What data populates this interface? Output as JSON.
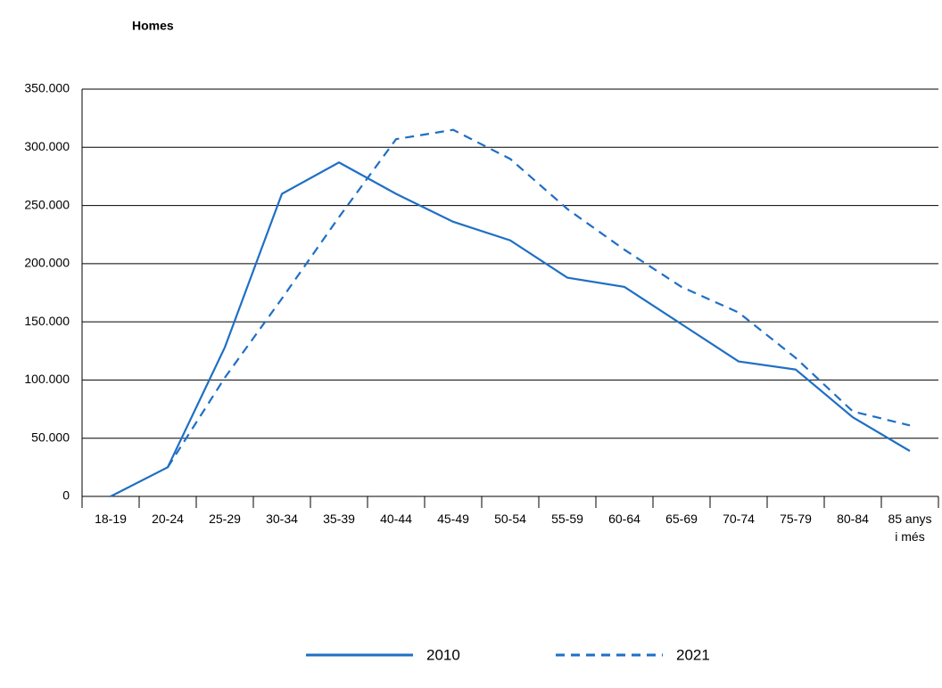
{
  "chart_data": {
    "type": "line",
    "title": "Homes",
    "categories": [
      "18-19",
      "20-24",
      "25-29",
      "30-34",
      "35-39",
      "40-44",
      "45-49",
      "50-54",
      "55-59",
      "60-64",
      "65-69",
      "70-74",
      "75-79",
      "80-84",
      "85 anys i més"
    ],
    "series": [
      {
        "name": "2010",
        "color": "#1f6fc4",
        "dash": false,
        "values": [
          0,
          25000,
          128000,
          260000,
          287000,
          260000,
          236000,
          220000,
          188000,
          180000,
          148000,
          116000,
          109000,
          68000,
          39000
        ]
      },
      {
        "name": "2021",
        "color": "#1f6fc4",
        "dash": true,
        "values": [
          null,
          25000,
          102000,
          170000,
          240000,
          307000,
          315000,
          290000,
          247000,
          212000,
          180000,
          158000,
          119000,
          73000,
          61000
        ]
      }
    ],
    "ylim": [
      0,
      350000
    ],
    "yticks": [
      0,
      {
        "value": 50000,
        "label": "50.000"
      },
      {
        "value": 100000,
        "label": "100.000"
      },
      {
        "value": 150000,
        "label": "150.000"
      },
      {
        "value": 200000,
        "label": "200.000"
      },
      {
        "value": 250000,
        "label": "250.000"
      },
      {
        "value": 300000,
        "label": "300.000"
      },
      {
        "value": 350000,
        "label": "350.000"
      }
    ],
    "grid": true
  }
}
